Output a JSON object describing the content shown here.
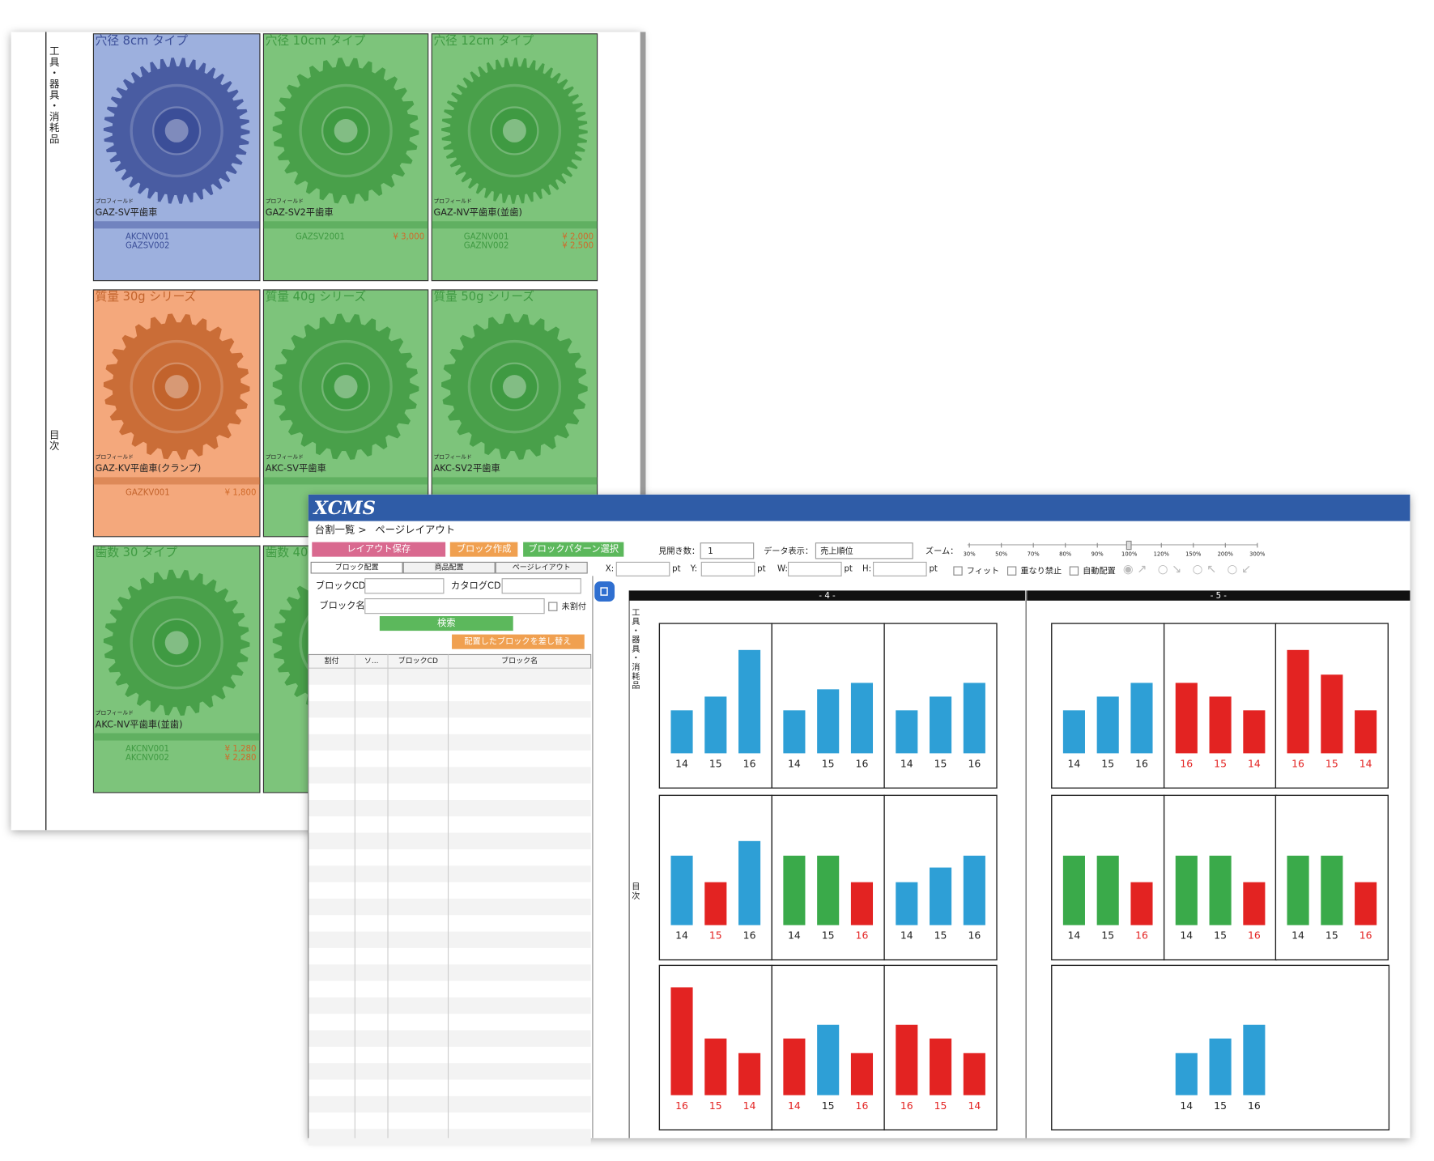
{
  "catalog": {
    "side_labels": [
      "工具・器具・消耗品",
      "目次"
    ],
    "blocks": [
      {
        "title": "穴径 8cm タイプ",
        "color": "#9db0de",
        "ink": "#3b4e98",
        "maker": "プロフィールド",
        "name": "GAZ-SV平歯車",
        "codes": [
          "AKCNV001",
          "GAZSV002"
        ],
        "prices": []
      },
      {
        "title": "穴径 10cm タイプ",
        "color": "#7dc47b",
        "ink": "#3f9a42",
        "maker": "プロフィールド",
        "name": "GAZ-SV2平歯車",
        "codes": [
          "GAZSV2001"
        ],
        "prices": [
          "¥ 3,000"
        ]
      },
      {
        "title": "穴径 12cm タイプ",
        "color": "#7dc47b",
        "ink": "#3f9a42",
        "maker": "プロフィールド",
        "name": "GAZ-NV平歯車(並歯)",
        "codes": [
          "GAZNV001",
          "GAZNV002"
        ],
        "prices": [
          "¥ 2,000",
          "¥ 2,500"
        ]
      },
      {
        "title": "質量 30g シリーズ",
        "color": "#f4a87c",
        "ink": "#c2632c",
        "maker": "プロフィールド",
        "name": "GAZ-KV平歯車(クランプ)",
        "codes": [
          "GAZKV001"
        ],
        "prices": [
          "¥ 1,800"
        ]
      },
      {
        "title": "質量 40g シリーズ",
        "color": "#7dc47b",
        "ink": "#3f9a42",
        "maker": "プロフィールド",
        "name": "AKC-SV平歯車",
        "codes": [],
        "prices": []
      },
      {
        "title": "質量 50g シリーズ",
        "color": "#7dc47b",
        "ink": "#3f9a42",
        "maker": "プロフィールド",
        "name": "AKC-SV2平歯車",
        "codes": [],
        "prices": []
      },
      {
        "title": "歯数 30 タイプ",
        "color": "#7dc47b",
        "ink": "#3f9a42",
        "maker": "プロフィールド",
        "name": "AKC-NV平歯車(並歯)",
        "codes": [
          "AKCNV001",
          "AKCNV002"
        ],
        "prices": [
          "¥ 1,280",
          "¥ 2,280"
        ]
      },
      {
        "title": "歯数 40",
        "color": "#7dc47b",
        "ink": "#3f9a42",
        "maker": "",
        "name": "",
        "codes": [],
        "prices": []
      }
    ]
  },
  "app": {
    "logo": "XCMS",
    "breadcrumb": "台割一覧 >",
    "breadcrumb_current": "ページレイアウト",
    "buttons": [
      {
        "label": "レイアウト保存",
        "color": "#d9698f"
      },
      {
        "label": "ブロック作成",
        "color": "#f0a050"
      },
      {
        "label": "ブロックパターン選択",
        "color": "#5cb85c"
      }
    ],
    "spread_label": "見開き数：",
    "spread_value": "1",
    "data_label": "データ表示：",
    "data_value": "売上順位",
    "zoom_label": "ズーム：",
    "zoom_levels": [
      "30%",
      "50%",
      "70%",
      "80%",
      "90%",
      "100%",
      "120%",
      "150%",
      "200%",
      "300%"
    ],
    "tabs": [
      "ブロック配置",
      "商品配置",
      "ページレイアウト"
    ],
    "coords": [
      "X:",
      "Y:",
      "W:",
      "H:"
    ],
    "unit": "pt",
    "checks": [
      "フィット",
      "重なり禁止",
      "自動配置"
    ],
    "search": {
      "block_cd": "ブロックCD:",
      "catalog_cd": "カタログCD:",
      "block_name": "ブロック名:",
      "unassigned": "未割付",
      "search": "検索",
      "replace": "配置したブロックを差し替え"
    },
    "table_headers": [
      "割付",
      "ソ...",
      "ブロックCD",
      "ブロック名"
    ]
  },
  "layout": {
    "ylim": [
      0,
      130
    ],
    "pages": [
      {
        "label": "- 4 -",
        "blocks": [
          {
            "categories": [
              "14",
              "15",
              "16"
            ],
            "values": [
              47,
              62,
              113
            ],
            "colors": [
              "#2e9fd6",
              "#2e9fd6",
              "#2e9fd6"
            ],
            "label_colors": [
              "#222222",
              "#222222",
              "#222222"
            ]
          },
          {
            "categories": [
              "14",
              "15",
              "16"
            ],
            "values": [
              47,
              70,
              77
            ],
            "colors": [
              "#2e9fd6",
              "#2e9fd6",
              "#2e9fd6"
            ],
            "label_colors": [
              "#222222",
              "#222222",
              "#222222"
            ]
          },
          {
            "categories": [
              "14",
              "15",
              "16"
            ],
            "values": [
              47,
              62,
              77
            ],
            "colors": [
              "#2e9fd6",
              "#2e9fd6",
              "#2e9fd6"
            ],
            "label_colors": [
              "#222222",
              "#222222",
              "#222222"
            ]
          },
          {
            "categories": [
              "14",
              "15",
              "16"
            ],
            "values": [
              76,
              47,
              92
            ],
            "colors": [
              "#2e9fd6",
              "#e32322",
              "#2e9fd6"
            ],
            "label_colors": [
              "#222222",
              "#e32322",
              "#222222"
            ]
          },
          {
            "categories": [
              "14",
              "15",
              "16"
            ],
            "values": [
              76,
              76,
              47
            ],
            "colors": [
              "#3aaa4a",
              "#3aaa4a",
              "#e32322"
            ],
            "label_colors": [
              "#222222",
              "#222222",
              "#e32322"
            ]
          },
          {
            "categories": [
              "14",
              "15",
              "16"
            ],
            "values": [
              47,
              63,
              76
            ],
            "colors": [
              "#2e9fd6",
              "#2e9fd6",
              "#2e9fd6"
            ],
            "label_colors": [
              "#222222",
              "#222222",
              "#222222"
            ]
          },
          {
            "categories": [
              "16",
              "15",
              "14"
            ],
            "values": [
              118,
              62,
              46
            ],
            "colors": [
              "#e32322",
              "#e32322",
              "#e32322"
            ],
            "label_colors": [
              "#e32322",
              "#e32322",
              "#e32322"
            ]
          },
          {
            "categories": [
              "14",
              "15",
              "16"
            ],
            "values": [
              62,
              77,
              46
            ],
            "colors": [
              "#e32322",
              "#2e9fd6",
              "#e32322"
            ],
            "label_colors": [
              "#e32322",
              "#222222",
              "#e32322"
            ]
          },
          {
            "categories": [
              "16",
              "15",
              "14"
            ],
            "values": [
              77,
              62,
              46
            ],
            "colors": [
              "#e32322",
              "#e32322",
              "#e32322"
            ],
            "label_colors": [
              "#e32322",
              "#e32322",
              "#e32322"
            ]
          }
        ]
      },
      {
        "label": "- 5 -",
        "blocks": [
          {
            "categories": [
              "14",
              "15",
              "16"
            ],
            "values": [
              47,
              62,
              77
            ],
            "colors": [
              "#2e9fd6",
              "#2e9fd6",
              "#2e9fd6"
            ],
            "label_colors": [
              "#222222",
              "#222222",
              "#222222"
            ]
          },
          {
            "categories": [
              "16",
              "15",
              "14"
            ],
            "values": [
              77,
              62,
              47
            ],
            "colors": [
              "#e32322",
              "#e32322",
              "#e32322"
            ],
            "label_colors": [
              "#e32322",
              "#e32322",
              "#e32322"
            ]
          },
          {
            "categories": [
              "16",
              "15",
              "14"
            ],
            "values": [
              113,
              86,
              47
            ],
            "colors": [
              "#e32322",
              "#e32322",
              "#e32322"
            ],
            "label_colors": [
              "#e32322",
              "#e32322",
              "#e32322"
            ]
          },
          {
            "categories": [
              "14",
              "15",
              "16"
            ],
            "values": [
              76,
              76,
              47
            ],
            "colors": [
              "#3aaa4a",
              "#3aaa4a",
              "#e32322"
            ],
            "label_colors": [
              "#222222",
              "#222222",
              "#e32322"
            ]
          },
          {
            "categories": [
              "14",
              "15",
              "16"
            ],
            "values": [
              76,
              76,
              47
            ],
            "colors": [
              "#3aaa4a",
              "#3aaa4a",
              "#e32322"
            ],
            "label_colors": [
              "#222222",
              "#222222",
              "#e32322"
            ]
          },
          {
            "categories": [
              "14",
              "15",
              "16"
            ],
            "values": [
              76,
              76,
              47
            ],
            "colors": [
              "#3aaa4a",
              "#3aaa4a",
              "#e32322"
            ],
            "label_colors": [
              "#222222",
              "#222222",
              "#e32322"
            ]
          },
          {
            "categories": [
              "14",
              "15",
              "16"
            ],
            "values": [
              46,
              62,
              77
            ],
            "colors": [
              "#2e9fd6",
              "#2e9fd6",
              "#2e9fd6"
            ],
            "label_colors": [
              "#222222",
              "#222222",
              "#222222"
            ]
          }
        ]
      }
    ]
  }
}
